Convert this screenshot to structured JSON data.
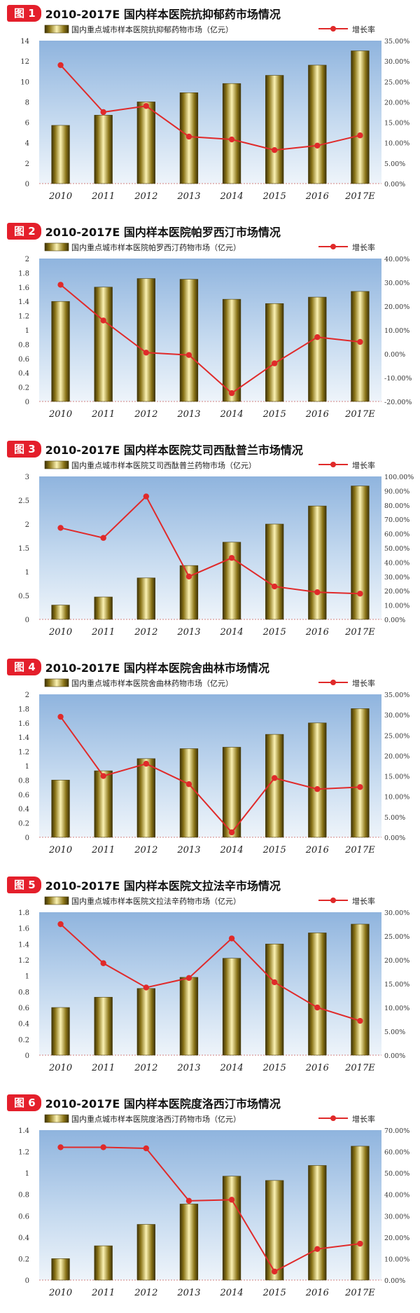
{
  "chart_data": [
    {
      "type": "bar",
      "fig_label": "图 1",
      "title": "2010-2017E 国内样本医院抗抑郁药市场情况",
      "categories": [
        "2010",
        "2011",
        "2012",
        "2013",
        "2014",
        "2015",
        "2016",
        "2017E"
      ],
      "series": [
        {
          "name": "国内重点城市样本医院抗抑郁药物市场（亿元）",
          "type": "bar",
          "axis": "left",
          "values": [
            5.7,
            6.7,
            8.0,
            8.9,
            9.8,
            10.6,
            11.6,
            13.0
          ]
        },
        {
          "name": "增长率",
          "type": "line",
          "axis": "right",
          "values": [
            29.0,
            17.5,
            19.0,
            11.5,
            10.8,
            8.2,
            9.3,
            11.8
          ]
        }
      ],
      "ylim": [
        0,
        14
      ],
      "y_ticks": [
        "0",
        "2",
        "4",
        "6",
        "8",
        "10",
        "12",
        "14"
      ],
      "y2lim": [
        0,
        35
      ],
      "y2_ticks": [
        "0.00%",
        "5.00%",
        "10.00%",
        "15.00%",
        "20.00%",
        "25.00%",
        "30.00%",
        "35.00%"
      ]
    },
    {
      "type": "bar",
      "fig_label": "图 2",
      "title": "2010-2017E 国内样本医院帕罗西汀市场情况",
      "categories": [
        "2010",
        "2011",
        "2012",
        "2013",
        "2014",
        "2015",
        "2016",
        "2017E"
      ],
      "series": [
        {
          "name": "国内重点城市样本医院帕罗西汀药物市场（亿元）",
          "type": "bar",
          "axis": "left",
          "values": [
            1.4,
            1.6,
            1.72,
            1.71,
            1.43,
            1.37,
            1.46,
            1.54
          ]
        },
        {
          "name": "增长率",
          "type": "line",
          "axis": "right",
          "values": [
            29.0,
            14.0,
            0.5,
            -0.5,
            -16.5,
            -4.0,
            7.0,
            5.0
          ]
        }
      ],
      "ylim": [
        0,
        2
      ],
      "y_ticks": [
        "0",
        "0.2",
        "0.4",
        "0.6",
        "0.8",
        "1",
        "1.2",
        "1.4",
        "1.6",
        "1.8",
        "2"
      ],
      "y2lim": [
        -20,
        40
      ],
      "y2_ticks": [
        "-20.00%",
        "-10.00%",
        "0.00%",
        "10.00%",
        "20.00%",
        "30.00%",
        "40.00%"
      ]
    },
    {
      "type": "bar",
      "fig_label": "图 3",
      "title": "2010-2017E 国内样本医院艾司西酞普兰市场情况",
      "categories": [
        "2010",
        "2011",
        "2012",
        "2013",
        "2014",
        "2015",
        "2016",
        "2017E"
      ],
      "series": [
        {
          "name": "国内重点城市样本医院艾司西酞普兰药物市场（亿元）",
          "type": "bar",
          "axis": "left",
          "values": [
            0.3,
            0.47,
            0.87,
            1.13,
            1.62,
            2.0,
            2.38,
            2.8
          ]
        },
        {
          "name": "增长率",
          "type": "line",
          "axis": "right",
          "values": [
            64.0,
            57.0,
            86.0,
            30.0,
            43.0,
            23.0,
            19.0,
            18.0
          ]
        }
      ],
      "ylim": [
        0,
        3
      ],
      "y_ticks": [
        "0",
        "0.5",
        "1",
        "1.5",
        "2",
        "2.5",
        "3"
      ],
      "y2lim": [
        0,
        100
      ],
      "y2_ticks": [
        "0.00%",
        "10.00%",
        "20.00%",
        "30.00%",
        "40.00%",
        "50.00%",
        "60.00%",
        "70.00%",
        "80.00%",
        "90.00%",
        "100.00%"
      ]
    },
    {
      "type": "bar",
      "fig_label": "图 4",
      "title": "2010-2017E 国内样本医院舍曲林市场情况",
      "categories": [
        "2010",
        "2011",
        "2012",
        "2013",
        "2014",
        "2015",
        "2016",
        "2017E"
      ],
      "series": [
        {
          "name": "国内重点城市样本医院舍曲林药物市场（亿元）",
          "type": "bar",
          "axis": "left",
          "values": [
            0.8,
            0.93,
            1.1,
            1.24,
            1.26,
            1.44,
            1.6,
            1.8
          ]
        },
        {
          "name": "增长率",
          "type": "line",
          "axis": "right",
          "values": [
            29.5,
            15.0,
            18.0,
            13.0,
            1.2,
            14.5,
            11.8,
            12.3
          ]
        }
      ],
      "ylim": [
        0,
        2
      ],
      "y_ticks": [
        "0",
        "0.2",
        "0.4",
        "0.6",
        "0.8",
        "1",
        "1.2",
        "1.4",
        "1.6",
        "1.8",
        "2"
      ],
      "y2lim": [
        0,
        35
      ],
      "y2_ticks": [
        "0.00%",
        "5.00%",
        "10.00%",
        "15.00%",
        "20.00%",
        "25.00%",
        "30.00%",
        "35.00%"
      ]
    },
    {
      "type": "bar",
      "fig_label": "图 5",
      "title": "2010-2017E 国内样本医院文拉法辛市场情况",
      "categories": [
        "2010",
        "2011",
        "2012",
        "2013",
        "2014",
        "2015",
        "2016",
        "2017E"
      ],
      "series": [
        {
          "name": "国内重点城市样本医院文拉法辛药物市场（亿元）",
          "type": "bar",
          "axis": "left",
          "values": [
            0.6,
            0.73,
            0.84,
            0.98,
            1.22,
            1.4,
            1.54,
            1.65
          ]
        },
        {
          "name": "增长率",
          "type": "line",
          "axis": "right",
          "values": [
            27.5,
            19.3,
            14.2,
            16.2,
            24.5,
            15.3,
            10.0,
            7.2
          ]
        }
      ],
      "ylim": [
        0,
        1.8
      ],
      "y_ticks": [
        "0",
        "0.2",
        "0.4",
        "0.6",
        "0.8",
        "1",
        "1.2",
        "1.4",
        "1.6",
        "1.8"
      ],
      "y2lim": [
        0,
        30
      ],
      "y2_ticks": [
        "0.00%",
        "5.00%",
        "10.00%",
        "15.00%",
        "20.00%",
        "25.00%",
        "30.00%"
      ]
    },
    {
      "type": "bar",
      "fig_label": "图 6",
      "title": "2010-2017E 国内样本医院度洛西汀市场情况",
      "categories": [
        "2010",
        "2011",
        "2012",
        "2013",
        "2014",
        "2015",
        "2016",
        "2017E"
      ],
      "series": [
        {
          "name": "国内重点城市样本医院度洛西汀药物市场（亿元）",
          "type": "bar",
          "axis": "left",
          "values": [
            0.2,
            0.32,
            0.52,
            0.71,
            0.97,
            0.93,
            1.07,
            1.25
          ]
        },
        {
          "name": "增长率",
          "type": "line",
          "axis": "right",
          "values": [
            62.0,
            62.0,
            61.5,
            37.0,
            37.5,
            4.0,
            14.5,
            17.0
          ]
        }
      ],
      "ylim": [
        0,
        1.4
      ],
      "y_ticks": [
        "0",
        "0.2",
        "0.4",
        "0.6",
        "0.8",
        "1",
        "1.2",
        "1.4"
      ],
      "y2lim": [
        0,
        70
      ],
      "y2_ticks": [
        "0.00%",
        "10.00%",
        "20.00%",
        "30.00%",
        "40.00%",
        "50.00%",
        "60.00%",
        "70.00%"
      ]
    }
  ]
}
